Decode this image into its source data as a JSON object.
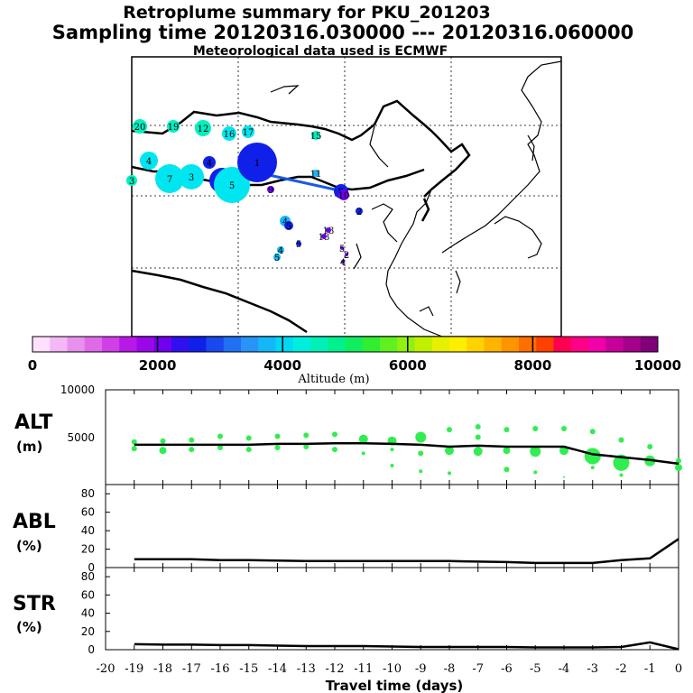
{
  "titles": {
    "line1": "Retroplume summary for PKU_201203",
    "line2": "Sampling time   20120316.030000 --- 20120316.060000",
    "line3": "Meteorological data used is ECMWF"
  },
  "colorbar": {
    "label": "Altitude (m)",
    "ticks": [
      "0",
      "2000",
      "4000",
      "6000",
      "8000",
      "10000"
    ],
    "colors": [
      "#ffe0ff",
      "#f3b8f5",
      "#e890ee",
      "#de6ae8",
      "#d040e6",
      "#b818e8",
      "#9a08ea",
      "#7000ee",
      "#3010ee",
      "#1020e8",
      "#1848ee",
      "#2070f4",
      "#2894f8",
      "#14b8f8",
      "#00d8f4",
      "#00eede",
      "#00f0b8",
      "#00f08e",
      "#10ee60",
      "#30ee30",
      "#60f020",
      "#90f010",
      "#bff000",
      "#e6f000",
      "#ffee00",
      "#ffd200",
      "#ffb400",
      "#ff9400",
      "#ff6e00",
      "#ff4000",
      "#ff0050",
      "#ff0088",
      "#f000a8",
      "#c8009a",
      "#a4008a",
      "#80007a"
    ]
  },
  "map_labels": [
    "1",
    "2",
    "3",
    "4",
    "5",
    "6",
    "7",
    "8",
    "9",
    "10",
    "11",
    "12",
    "13",
    "14",
    "15",
    "16",
    "17",
    "18",
    "19",
    "20"
  ],
  "panels": {
    "alt": {
      "label1": "ALT",
      "label2": "(m)",
      "ticks": [
        "10000",
        "5000",
        "0"
      ]
    },
    "abl": {
      "label1": "ABL",
      "label2": "(%)",
      "ticks": [
        "80",
        "60",
        "40",
        "20",
        "0"
      ]
    },
    "str": {
      "label1": "STR",
      "label2": "(%)",
      "ticks": [
        "80",
        "60",
        "40",
        "20",
        "0"
      ]
    }
  },
  "xaxis": {
    "label": "Travel time (days)",
    "ticks": [
      "-20",
      "-19",
      "-18",
      "-17",
      "-16",
      "-15",
      "-14",
      "-13",
      "-12",
      "-11",
      "-10",
      "-9",
      "-8",
      "-7",
      "-6",
      "-5",
      "-4",
      "-3",
      "-2",
      "-1",
      "0"
    ]
  },
  "chart_data": [
    {
      "type": "line",
      "title": "ALT",
      "xlabel": "Travel time (days)",
      "ylabel": "(m)",
      "xlim": [
        -20,
        0
      ],
      "ylim": [
        0,
        10000
      ],
      "x": [
        -19,
        -18,
        -17,
        -16,
        -15,
        -14,
        -13,
        -12,
        -11,
        -10,
        -9,
        -8,
        -7,
        -6,
        -5,
        -4,
        -3,
        -2,
        -1,
        0
      ],
      "series": [
        {
          "name": "mean altitude",
          "values": [
            4200,
            4200,
            4200,
            4200,
            4200,
            4300,
            4300,
            4350,
            4350,
            4300,
            4200,
            4000,
            4100,
            4000,
            4000,
            4000,
            3200,
            2900,
            2600,
            2200
          ]
        }
      ],
      "cluster_points": [
        {
          "x": -19,
          "y": 4500,
          "r": 3
        },
        {
          "x": -19,
          "y": 3800,
          "r": 3
        },
        {
          "x": -18,
          "y": 4600,
          "r": 3
        },
        {
          "x": -18,
          "y": 3600,
          "r": 4
        },
        {
          "x": -17,
          "y": 4700,
          "r": 3
        },
        {
          "x": -17,
          "y": 3700,
          "r": 3
        },
        {
          "x": -16,
          "y": 5100,
          "r": 3
        },
        {
          "x": -16,
          "y": 3900,
          "r": 3
        },
        {
          "x": -15,
          "y": 4900,
          "r": 3
        },
        {
          "x": -15,
          "y": 3700,
          "r": 3
        },
        {
          "x": -14,
          "y": 5100,
          "r": 3
        },
        {
          "x": -14,
          "y": 3900,
          "r": 3
        },
        {
          "x": -13,
          "y": 5200,
          "r": 3
        },
        {
          "x": -13,
          "y": 4000,
          "r": 3
        },
        {
          "x": -12,
          "y": 5300,
          "r": 3
        },
        {
          "x": -12,
          "y": 3700,
          "r": 3
        },
        {
          "x": -11,
          "y": 4800,
          "r": 5
        },
        {
          "x": -11,
          "y": 3300,
          "r": 2
        },
        {
          "x": -10,
          "y": 4600,
          "r": 5
        },
        {
          "x": -10,
          "y": 3700,
          "r": 2
        },
        {
          "x": -10,
          "y": 2000,
          "r": 2
        },
        {
          "x": -9,
          "y": 5000,
          "r": 6
        },
        {
          "x": -9,
          "y": 3300,
          "r": 3
        },
        {
          "x": -9,
          "y": 1400,
          "r": 2
        },
        {
          "x": -8,
          "y": 5800,
          "r": 3
        },
        {
          "x": -8,
          "y": 3600,
          "r": 5
        },
        {
          "x": -8,
          "y": 1200,
          "r": 2
        },
        {
          "x": -7,
          "y": 6100,
          "r": 3
        },
        {
          "x": -7,
          "y": 5000,
          "r": 3
        },
        {
          "x": -7,
          "y": 3500,
          "r": 5
        },
        {
          "x": -6,
          "y": 5800,
          "r": 3
        },
        {
          "x": -6,
          "y": 3600,
          "r": 4
        },
        {
          "x": -6,
          "y": 1600,
          "r": 3
        },
        {
          "x": -5,
          "y": 5900,
          "r": 3
        },
        {
          "x": -5,
          "y": 3500,
          "r": 6
        },
        {
          "x": -5,
          "y": 1300,
          "r": 2
        },
        {
          "x": -4,
          "y": 5900,
          "r": 3
        },
        {
          "x": -4,
          "y": 3600,
          "r": 5
        },
        {
          "x": -4,
          "y": 800,
          "r": 1
        },
        {
          "x": -3,
          "y": 5600,
          "r": 3
        },
        {
          "x": -3,
          "y": 3000,
          "r": 9
        },
        {
          "x": -3,
          "y": 1800,
          "r": 2
        },
        {
          "x": -2,
          "y": 4700,
          "r": 3
        },
        {
          "x": -2,
          "y": 2300,
          "r": 9
        },
        {
          "x": -2,
          "y": 1000,
          "r": 2
        },
        {
          "x": -1,
          "y": 4000,
          "r": 3
        },
        {
          "x": -1,
          "y": 2500,
          "r": 6
        },
        {
          "x": 0,
          "y": 2500,
          "r": 3
        },
        {
          "x": 0,
          "y": 1800,
          "r": 4
        }
      ]
    },
    {
      "type": "line",
      "title": "ABL",
      "xlabel": "Travel time (days)",
      "ylabel": "(%)",
      "xlim": [
        -20,
        0
      ],
      "ylim": [
        0,
        90
      ],
      "x": [
        -19,
        -18,
        -17,
        -16,
        -15,
        -14,
        -13,
        -12,
        -11,
        -10,
        -9,
        -8,
        -7,
        -6,
        -5,
        -4,
        -3,
        -2,
        -1,
        0
      ],
      "series": [
        {
          "name": "ABL fraction",
          "values": [
            9,
            9,
            9,
            8,
            8,
            7.5,
            7,
            7,
            7,
            7,
            7,
            7,
            6.5,
            6,
            5,
            5,
            5,
            8,
            10,
            31
          ]
        }
      ]
    },
    {
      "type": "line",
      "title": "STR",
      "xlabel": "Travel time (days)",
      "ylabel": "(%)",
      "xlim": [
        -20,
        0
      ],
      "ylim": [
        0,
        90
      ],
      "x": [
        -19,
        -18,
        -17,
        -16,
        -15,
        -14,
        -13,
        -12,
        -11,
        -10,
        -9,
        -8,
        -7,
        -6,
        -5,
        -4,
        -3,
        -2,
        -1,
        0
      ],
      "series": [
        {
          "name": "STR fraction",
          "values": [
            6,
            5.5,
            5.5,
            5,
            5,
            4.5,
            4,
            4,
            4,
            3.5,
            3,
            3,
            3,
            3,
            2.5,
            2.5,
            2.5,
            3,
            8,
            0.5
          ]
        }
      ]
    }
  ]
}
